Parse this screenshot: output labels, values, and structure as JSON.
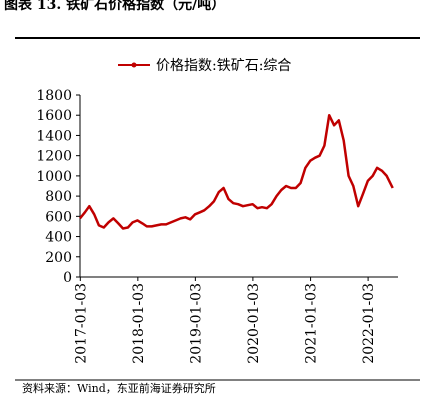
{
  "chart_data": {
    "type": "line",
    "title": "图表 13. 铁矿石价格指数（元/吨）",
    "source": "资料来源：Wind，东亚前海证券研究所",
    "x": [
      "2017-01-01",
      "2017-02-01",
      "2017-03-01",
      "2017-04-01",
      "2017-05-01",
      "2017-06-01",
      "2017-07-01",
      "2017-08-01",
      "2017-09-01",
      "2017-10-01",
      "2017-11-01",
      "2017-12-01",
      "2018-01-01",
      "2018-02-01",
      "2018-03-01",
      "2018-04-01",
      "2018-05-01",
      "2018-06-01",
      "2018-07-01",
      "2018-08-01",
      "2018-09-01",
      "2018-10-01",
      "2018-11-01",
      "2018-12-01",
      "2019-01-01",
      "2019-02-01",
      "2019-03-01",
      "2019-04-01",
      "2019-05-01",
      "2019-06-01",
      "2019-07-01",
      "2019-08-01",
      "2019-09-01",
      "2019-10-01",
      "2019-11-01",
      "2019-12-01",
      "2020-01-01",
      "2020-02-01",
      "2020-03-01",
      "2020-04-01",
      "2020-05-01",
      "2020-06-01",
      "2020-07-01",
      "2020-08-01",
      "2020-09-01",
      "2020-10-01",
      "2020-11-01",
      "2020-12-01",
      "2021-01-01",
      "2021-02-01",
      "2021-03-01",
      "2021-04-01",
      "2021-05-01",
      "2021-06-01",
      "2021-07-01",
      "2021-08-01",
      "2021-09-01",
      "2021-10-01",
      "2021-11-01",
      "2021-12-01",
      "2022-01-01",
      "2022-02-01",
      "2022-03-01",
      "2022-04-01",
      "2022-05-01",
      "2022-06-08"
    ],
    "series": [
      {
        "name": "价格指数:铁矿石:综合",
        "color": "#c00000",
        "values": [
          580,
          640,
          700,
          620,
          510,
          490,
          540,
          580,
          530,
          480,
          490,
          540,
          560,
          530,
          500,
          500,
          510,
          520,
          520,
          540,
          560,
          580,
          590,
          570,
          620,
          640,
          660,
          700,
          750,
          840,
          880,
          770,
          730,
          720,
          700,
          710,
          720,
          680,
          690,
          680,
          720,
          800,
          860,
          900,
          880,
          880,
          930,
          1080,
          1150,
          1180,
          1200,
          1300,
          1600,
          1500,
          1550,
          1350,
          1000,
          900,
          700,
          820,
          950,
          1000,
          1080,
          1050,
          1000,
          880
        ]
      }
    ],
    "xlim": [
      "2017-01-01",
      "2022-06-10"
    ],
    "xticks": [
      "2017-01-03",
      "2018-01-03",
      "2019-01-03",
      "2020-01-03",
      "2021-01-03",
      "2022-01-03"
    ],
    "ylim": [
      0,
      1800
    ],
    "yticks": [
      0,
      200,
      400,
      600,
      800,
      1000,
      1200,
      1400,
      1600,
      1800
    ],
    "legend": "top"
  }
}
